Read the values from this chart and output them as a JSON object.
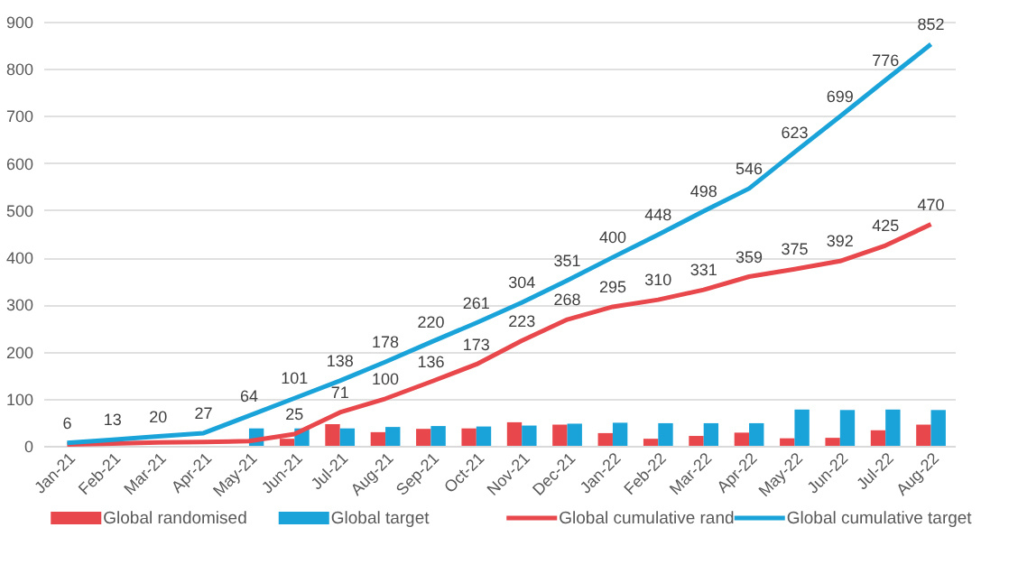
{
  "chart_data": {
    "type": "bar",
    "categories": [
      "Jan-21",
      "Feb-21",
      "Mar-21",
      "Apr-21",
      "May-21",
      "Jun-21",
      "Jul-21",
      "Aug-21",
      "Sep-21",
      "Oct-21",
      "Nov-21",
      "Dec-21",
      "Jan-22",
      "Feb-22",
      "Mar-22",
      "Apr-22",
      "May-22",
      "Jun-22",
      "Jul-22",
      "Aug-22"
    ],
    "series": [
      {
        "name": "Global randomised",
        "type": "bar",
        "color": "#e8474c",
        "values": [
          null,
          null,
          null,
          null,
          null,
          15,
          46,
          29,
          36,
          37,
          50,
          45,
          27,
          15,
          21,
          28,
          16,
          17,
          33,
          45
        ]
      },
      {
        "name": "Global target",
        "type": "bar",
        "color": "#1aa3d9",
        "values": [
          null,
          null,
          null,
          null,
          37,
          37,
          37,
          40,
          42,
          41,
          43,
          47,
          49,
          48,
          48,
          48,
          77,
          76,
          77,
          76
        ]
      },
      {
        "name": "Global cumulative rand",
        "type": "line",
        "color": "#e8474c",
        "values": [
          3,
          5,
          7,
          8,
          10,
          25,
          71,
          100,
          136,
          173,
          223,
          268,
          295,
          310,
          331,
          359,
          375,
          392,
          425,
          470
        ],
        "value_labels": [
          null,
          null,
          null,
          null,
          null,
          "25",
          "71",
          "100",
          "136",
          "173",
          "223",
          "268",
          "295",
          "310",
          "331",
          "359",
          "375",
          "392",
          "425",
          "470"
        ]
      },
      {
        "name": "Global cumulative target",
        "type": "line",
        "color": "#1aa3d9",
        "values": [
          6,
          13,
          20,
          27,
          64,
          101,
          138,
          178,
          220,
          261,
          304,
          351,
          400,
          448,
          498,
          546,
          623,
          699,
          776,
          852
        ],
        "value_labels": [
          "6",
          "13",
          "20",
          "27",
          "64",
          "101",
          "138",
          "178",
          "220",
          "261",
          "304",
          "351",
          "400",
          "448",
          "498",
          "546",
          "623",
          "699",
          "776",
          "852"
        ]
      }
    ],
    "ylim": [
      0,
      900
    ],
    "yticks": [
      0,
      100,
      200,
      300,
      400,
      500,
      600,
      700,
      800,
      900
    ],
    "grid": "y",
    "legend": "bottom"
  }
}
